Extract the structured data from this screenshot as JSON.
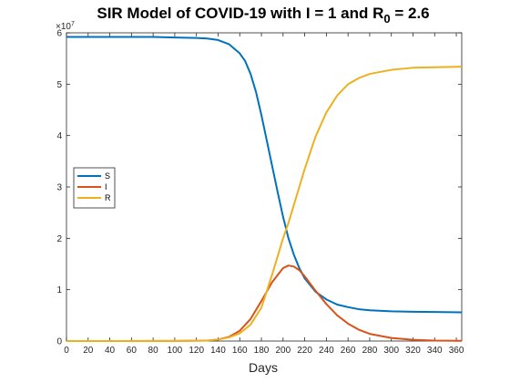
{
  "chart_data": {
    "type": "line",
    "title_main": "SIR Model of COVID-19 with I = 1 and R",
    "title_sub": "0",
    "title_tail": " = 2.6",
    "xlabel": "Days",
    "ylabel": "",
    "xlim": [
      0,
      365
    ],
    "ylim": [
      0,
      6
    ],
    "y_exponent_label": "×10",
    "y_exponent_power": "7",
    "x_ticks": [
      0,
      20,
      40,
      60,
      80,
      100,
      120,
      140,
      160,
      180,
      200,
      220,
      240,
      260,
      280,
      300,
      320,
      340,
      360
    ],
    "y_ticks": [
      0,
      1,
      2,
      3,
      4,
      5,
      6
    ],
    "legend_position": "west",
    "grid": false,
    "series": [
      {
        "name": "S",
        "color": "#0072BD",
        "x": [
          0,
          20,
          40,
          60,
          80,
          100,
          120,
          130,
          140,
          150,
          160,
          165,
          170,
          175,
          180,
          185,
          190,
          195,
          200,
          205,
          210,
          215,
          220,
          230,
          240,
          250,
          260,
          270,
          280,
          300,
          320,
          340,
          365
        ],
        "y": [
          5.92,
          5.92,
          5.92,
          5.92,
          5.92,
          5.91,
          5.9,
          5.89,
          5.86,
          5.78,
          5.6,
          5.45,
          5.2,
          4.85,
          4.4,
          3.9,
          3.4,
          2.9,
          2.42,
          2.0,
          1.68,
          1.42,
          1.22,
          0.96,
          0.81,
          0.71,
          0.66,
          0.62,
          0.6,
          0.58,
          0.57,
          0.565,
          0.56
        ]
      },
      {
        "name": "I",
        "color": "#D95319",
        "x": [
          0,
          100,
          130,
          140,
          150,
          160,
          170,
          180,
          190,
          200,
          205,
          210,
          215,
          220,
          230,
          240,
          250,
          260,
          270,
          280,
          300,
          320,
          340,
          365
        ],
        "y": [
          0,
          0.002,
          0.01,
          0.03,
          0.08,
          0.2,
          0.43,
          0.78,
          1.15,
          1.42,
          1.47,
          1.45,
          1.38,
          1.26,
          0.98,
          0.72,
          0.5,
          0.34,
          0.22,
          0.14,
          0.06,
          0.025,
          0.01,
          0.004
        ]
      },
      {
        "name": "R",
        "color": "#EDB120",
        "x": [
          0,
          100,
          130,
          140,
          150,
          160,
          170,
          180,
          190,
          200,
          205,
          210,
          215,
          220,
          230,
          240,
          250,
          260,
          270,
          280,
          300,
          320,
          340,
          365
        ],
        "y": [
          0,
          0.002,
          0.01,
          0.03,
          0.07,
          0.15,
          0.32,
          0.65,
          1.3,
          2.0,
          2.3,
          2.65,
          3.0,
          3.35,
          3.98,
          4.45,
          4.78,
          5.0,
          5.12,
          5.2,
          5.28,
          5.32,
          5.33,
          5.34
        ]
      }
    ]
  }
}
